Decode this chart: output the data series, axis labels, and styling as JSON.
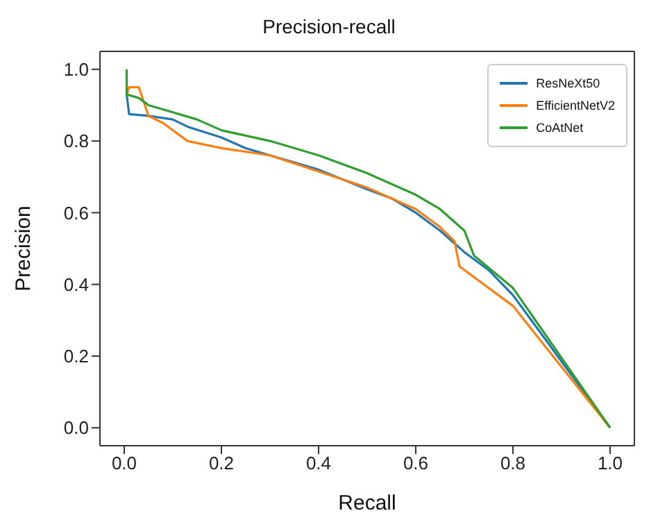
{
  "chart_data": {
    "type": "line",
    "title": "Precision-recall",
    "xlabel": "Recall",
    "ylabel": "Precision",
    "xlim": [
      -0.05,
      1.05
    ],
    "ylim": [
      -0.05,
      1.05
    ],
    "xticks": [
      {
        "value": 0,
        "label": "0.0"
      },
      0.2,
      0.4,
      0.6,
      0.8,
      {
        "value": 1,
        "label": "1.0"
      }
    ],
    "yticks": [
      {
        "value": 0,
        "label": "0.0"
      },
      0.2,
      0.4,
      0.6,
      0.8,
      {
        "value": 1,
        "label": "1.0"
      }
    ],
    "legend": "top right",
    "marker": "none",
    "line_style": "solid",
    "series": [
      {
        "name": "ResNeXt50",
        "color": "#1f77b4",
        "x": [
          0.005,
          0.01,
          0.05,
          0.1,
          0.13,
          0.2,
          0.25,
          0.3,
          0.4,
          0.5,
          0.55,
          0.6,
          0.65,
          0.7,
          0.75,
          0.8,
          1.0
        ],
        "values": [
          0.93,
          0.875,
          0.87,
          0.86,
          0.84,
          0.81,
          0.78,
          0.76,
          0.72,
          0.665,
          0.64,
          0.6,
          0.55,
          0.49,
          0.44,
          0.37,
          0.0
        ]
      },
      {
        "name": "EfficientNetV2",
        "color": "#ff7f0e",
        "x": [
          0.005,
          0.01,
          0.03,
          0.05,
          0.08,
          0.1,
          0.13,
          0.2,
          0.3,
          0.4,
          0.5,
          0.6,
          0.65,
          0.68,
          0.69,
          0.8,
          1.0
        ],
        "values": [
          0.93,
          0.95,
          0.95,
          0.87,
          0.85,
          0.83,
          0.8,
          0.78,
          0.76,
          0.715,
          0.67,
          0.61,
          0.56,
          0.52,
          0.45,
          0.34,
          0.0
        ]
      },
      {
        "name": "CoAtNet",
        "color": "#2ca02c",
        "x": [
          0.005,
          0.005,
          0.03,
          0.05,
          0.1,
          0.15,
          0.2,
          0.3,
          0.4,
          0.5,
          0.6,
          0.65,
          0.7,
          0.72,
          0.8,
          1.0
        ],
        "values": [
          1.0,
          0.93,
          0.92,
          0.9,
          0.88,
          0.86,
          0.83,
          0.8,
          0.76,
          0.71,
          0.65,
          0.61,
          0.55,
          0.48,
          0.39,
          0.0
        ]
      }
    ]
  }
}
